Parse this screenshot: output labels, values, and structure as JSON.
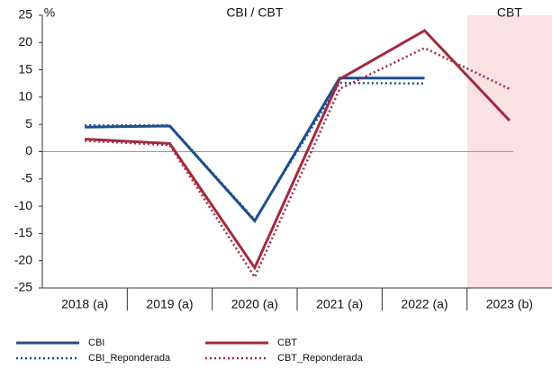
{
  "chart_data": {
    "type": "line",
    "unit_label": "%",
    "region_titles": [
      "CBI / CBT",
      "CBT"
    ],
    "shaded_category_index": 5,
    "shade_color": "#f9e1e4",
    "categories": [
      "2018 (a)",
      "2019 (a)",
      "2020 (a)",
      "2021 (a)",
      "2022 (a)",
      "2023 (b)"
    ],
    "series": [
      {
        "name": "CBI",
        "color": "#1f4e8c",
        "dashed": false,
        "values": [
          4.5,
          4.7,
          -12.7,
          13.5,
          13.5,
          null
        ]
      },
      {
        "name": "CBI_Reponderada",
        "color": "#1f4e8c",
        "dashed": true,
        "values": [
          4.8,
          4.8,
          -12.5,
          12.6,
          12.5,
          null
        ]
      },
      {
        "name": "CBT",
        "color": "#a3293d",
        "dashed": false,
        "values": [
          2.3,
          1.5,
          -21.3,
          13.3,
          22.2,
          5.7
        ]
      },
      {
        "name": "CBT_Reponderada",
        "color": "#a3293d",
        "dashed": true,
        "values": [
          2.0,
          1.2,
          -23.0,
          11.5,
          19.0,
          11.5
        ]
      }
    ],
    "ylim": [
      -25,
      25
    ],
    "yticks": [
      -25,
      -20,
      -15,
      -10,
      -5,
      0,
      5,
      10,
      15,
      20,
      25
    ]
  }
}
